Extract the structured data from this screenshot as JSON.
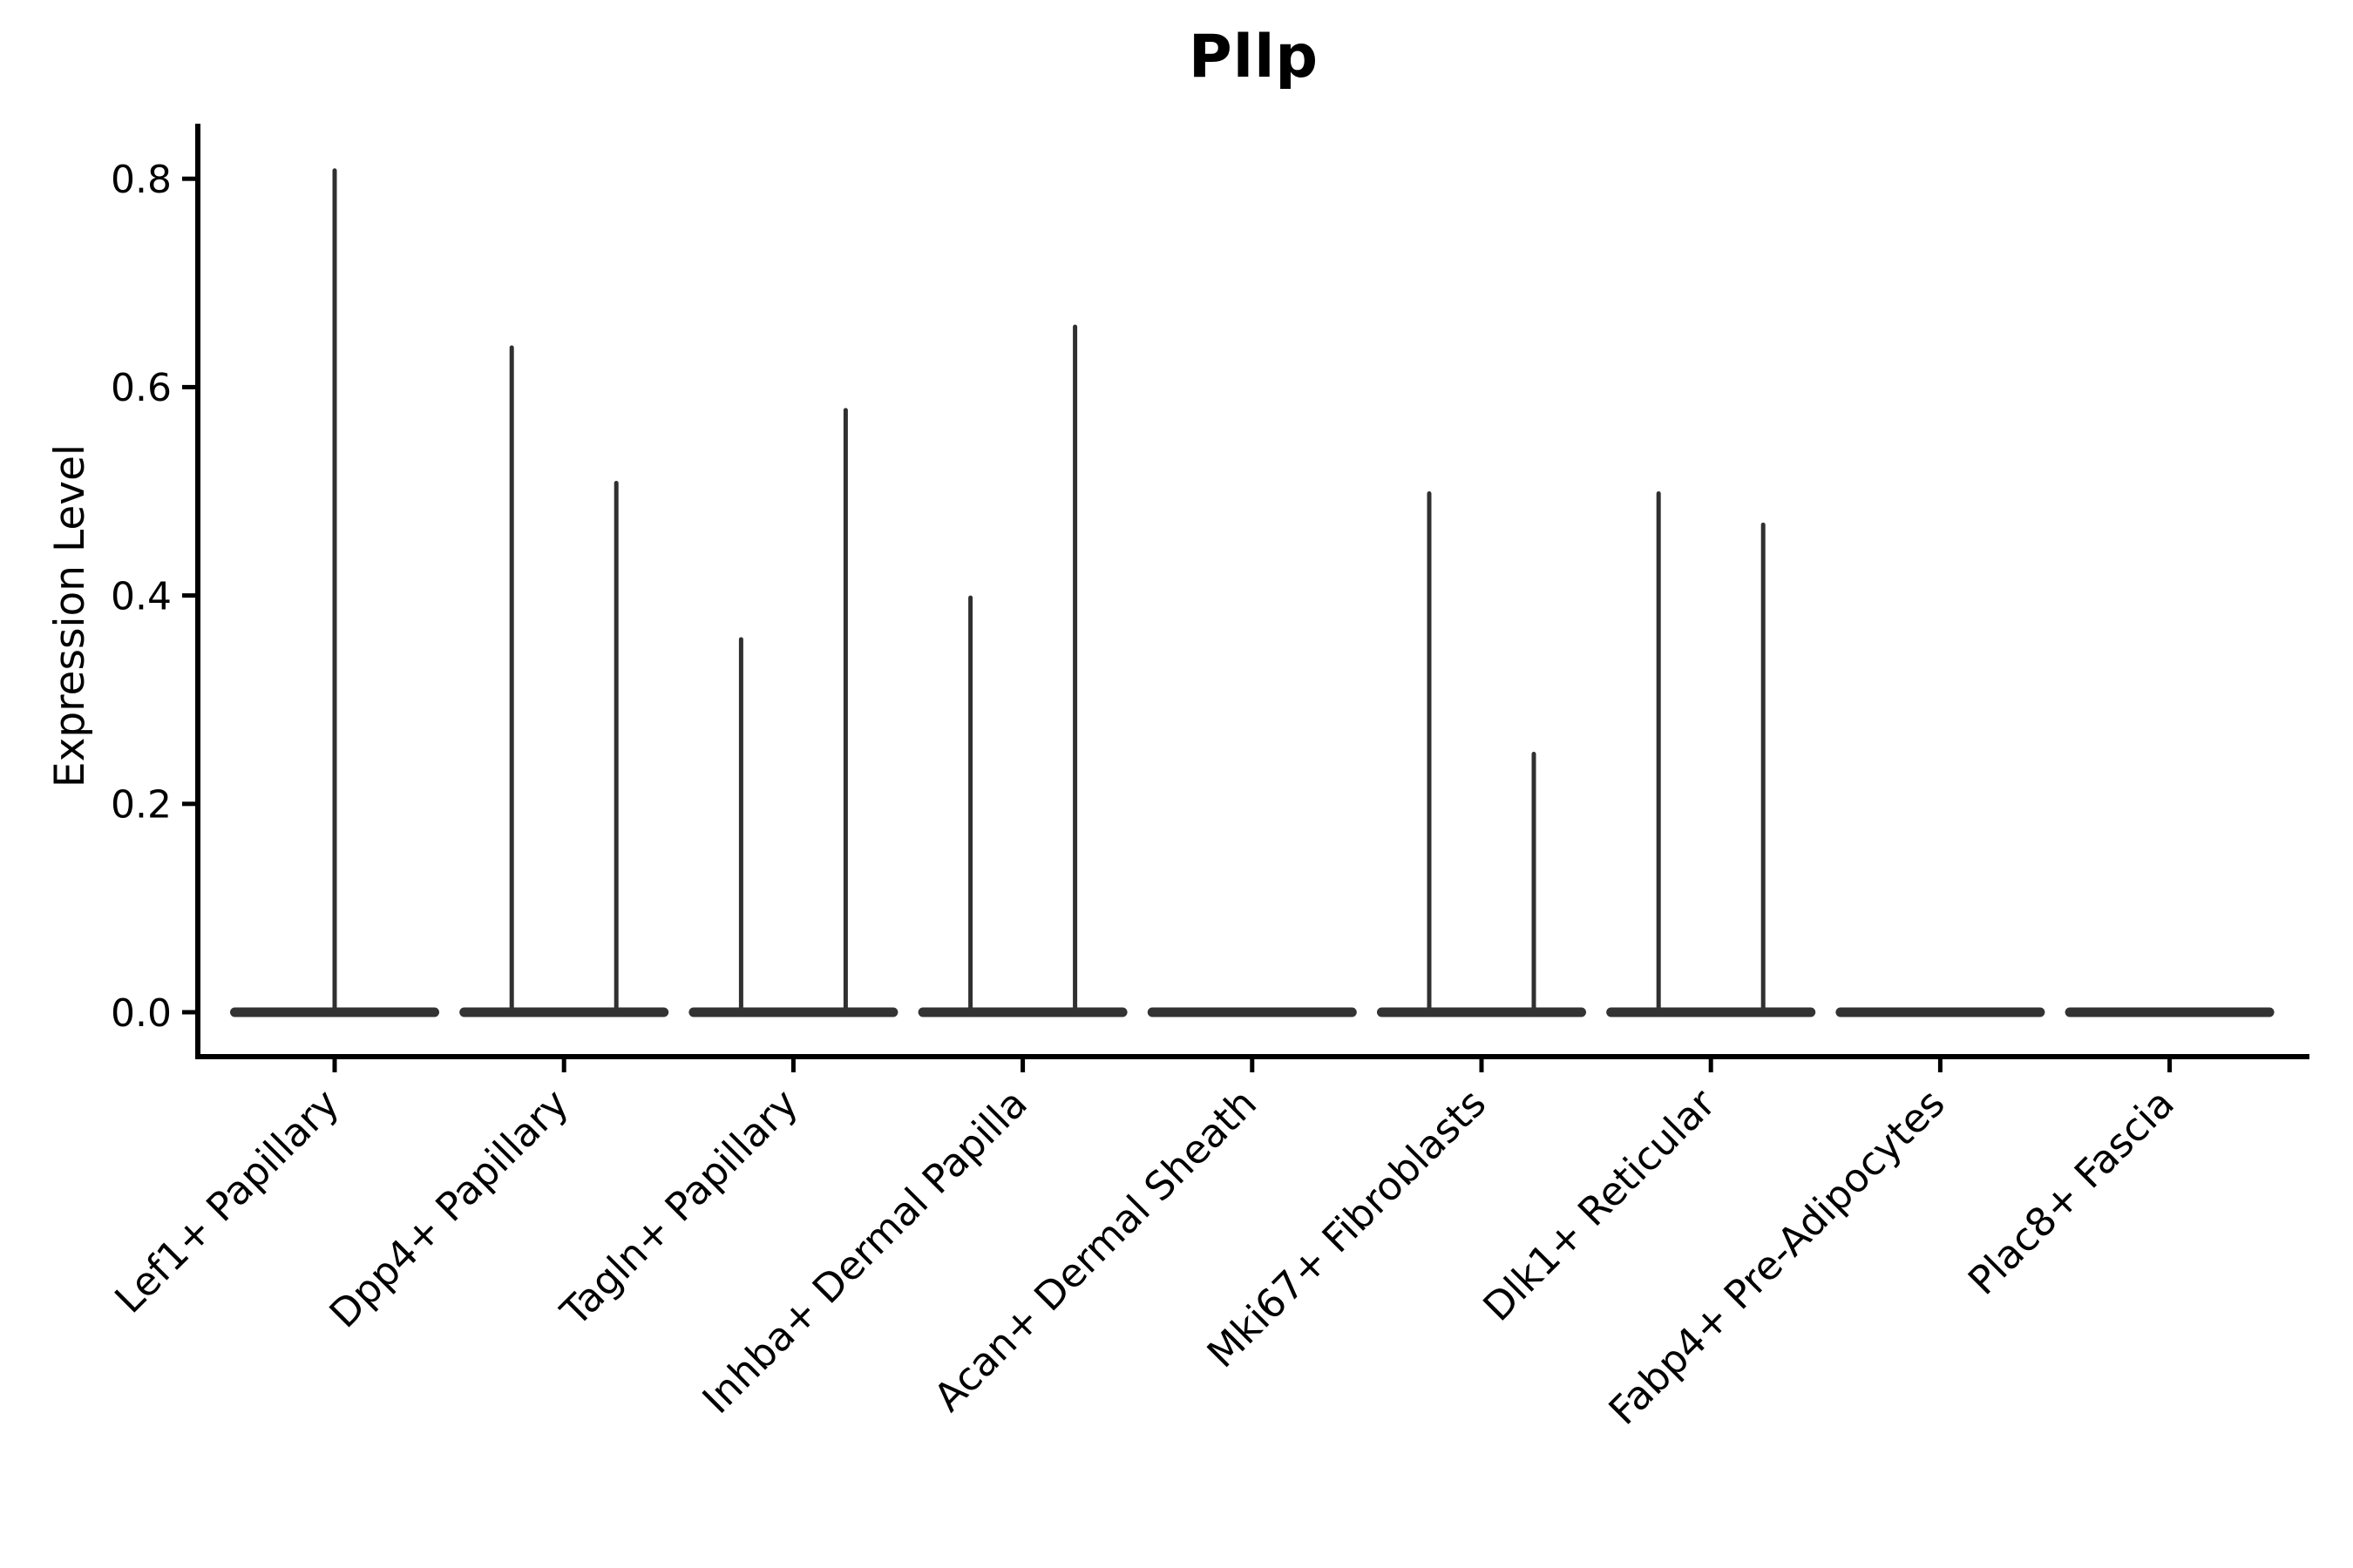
{
  "chart_data": {
    "type": "violin",
    "title": "Pllp",
    "xlabel": "",
    "ylabel": "Expression Level",
    "yticks": [
      "0.0",
      "0.2",
      "0.4",
      "0.6",
      "0.8"
    ],
    "ytick_values": [
      0.0,
      0.2,
      0.4,
      0.6,
      0.8
    ],
    "ylim": [
      -0.04,
      0.85
    ],
    "grid": false,
    "legend": "none",
    "style_note": "sparse single-cell expression violins: wide flat body at 0 with thin needle tails up to the max expressing cells; categories may show one centered needle or a dodged pair of needles",
    "categories": [
      {
        "label": "Lef1+ Papillary",
        "needles": [
          {
            "pos": "center",
            "max": 0.81
          }
        ]
      },
      {
        "label": "Dpp4+ Papillary",
        "needles": [
          {
            "pos": "left",
            "max": 0.64
          },
          {
            "pos": "right",
            "max": 0.51
          }
        ]
      },
      {
        "label": "Tagln+ Papillary",
        "needles": [
          {
            "pos": "left",
            "max": 0.36
          },
          {
            "pos": "right",
            "max": 0.58
          }
        ]
      },
      {
        "label": "Inhba+ Dermal Papilla",
        "needles": [
          {
            "pos": "left",
            "max": 0.4
          },
          {
            "pos": "right",
            "max": 0.66
          }
        ]
      },
      {
        "label": "Acan+ Dermal Sheath",
        "needles": []
      },
      {
        "label": "Mki67+ Fibroblasts",
        "needles": [
          {
            "pos": "left",
            "max": 0.5
          },
          {
            "pos": "right",
            "max": 0.25
          }
        ]
      },
      {
        "label": "Dlk1+ Reticular",
        "needles": [
          {
            "pos": "left",
            "max": 0.5
          },
          {
            "pos": "right",
            "max": 0.47
          }
        ]
      },
      {
        "label": "Fabp4+ Pre-Adipocytes",
        "needles": []
      },
      {
        "label": "Plac8+ Fascia",
        "needles": []
      }
    ],
    "colors": {
      "violin": "#303030",
      "violin_body": "#333333",
      "axis": "#000000",
      "text": "#000000",
      "background": "#ffffff"
    }
  }
}
